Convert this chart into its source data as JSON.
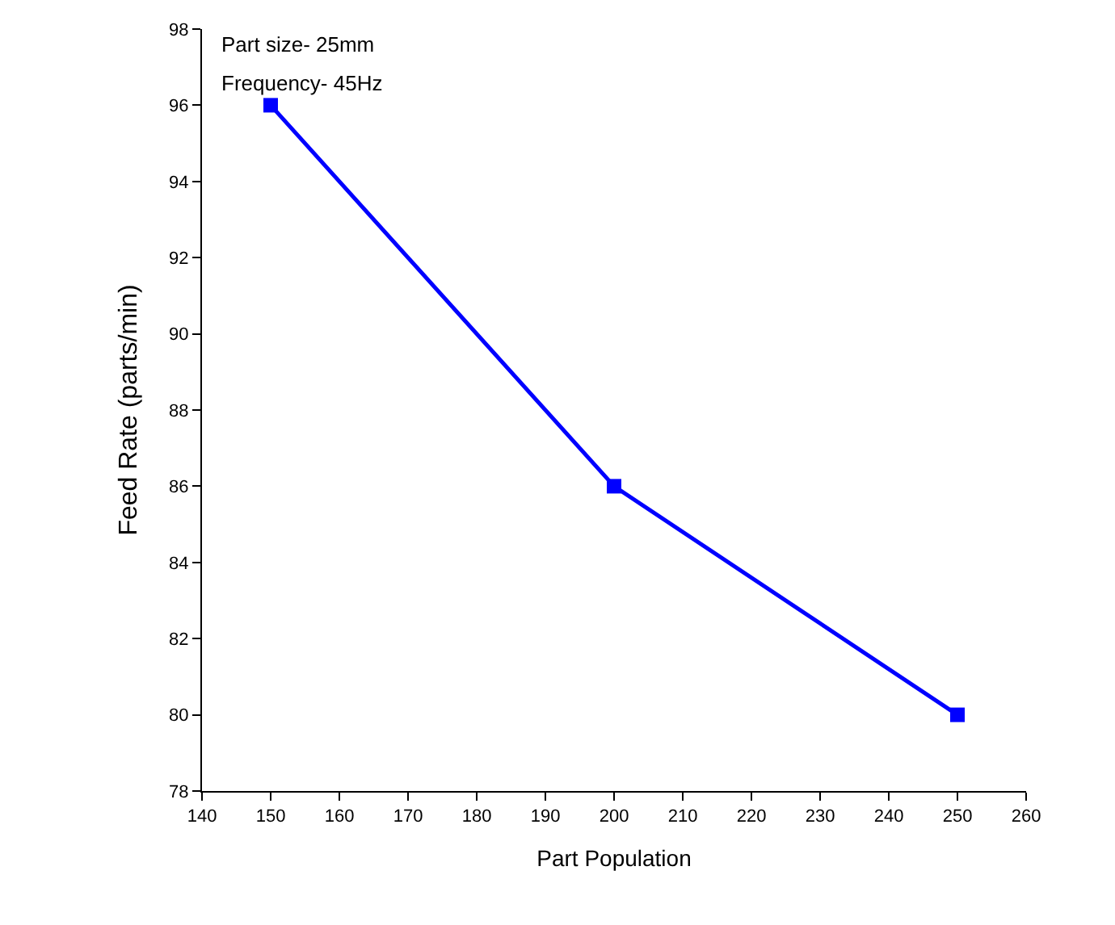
{
  "chart_data": {
    "type": "line",
    "xlabel": "Part Population",
    "ylabel": "Feed Rate (parts/min)",
    "x": [
      150,
      200,
      250
    ],
    "series": [
      {
        "color": "#0000ff",
        "values": [
          96,
          86,
          80
        ]
      }
    ],
    "xlim": [
      140,
      260
    ],
    "xticks": [
      140,
      150,
      160,
      170,
      180,
      190,
      200,
      210,
      220,
      230,
      240,
      250,
      260
    ],
    "ylim": [
      78,
      98
    ],
    "yticks": [
      78,
      80,
      82,
      84,
      86,
      88,
      90,
      92,
      94,
      96,
      98
    ],
    "marker": "square",
    "line_style": "solid",
    "legend": false,
    "annotations": [
      "Part size- 25mm",
      "Frequency- 45Hz"
    ]
  }
}
